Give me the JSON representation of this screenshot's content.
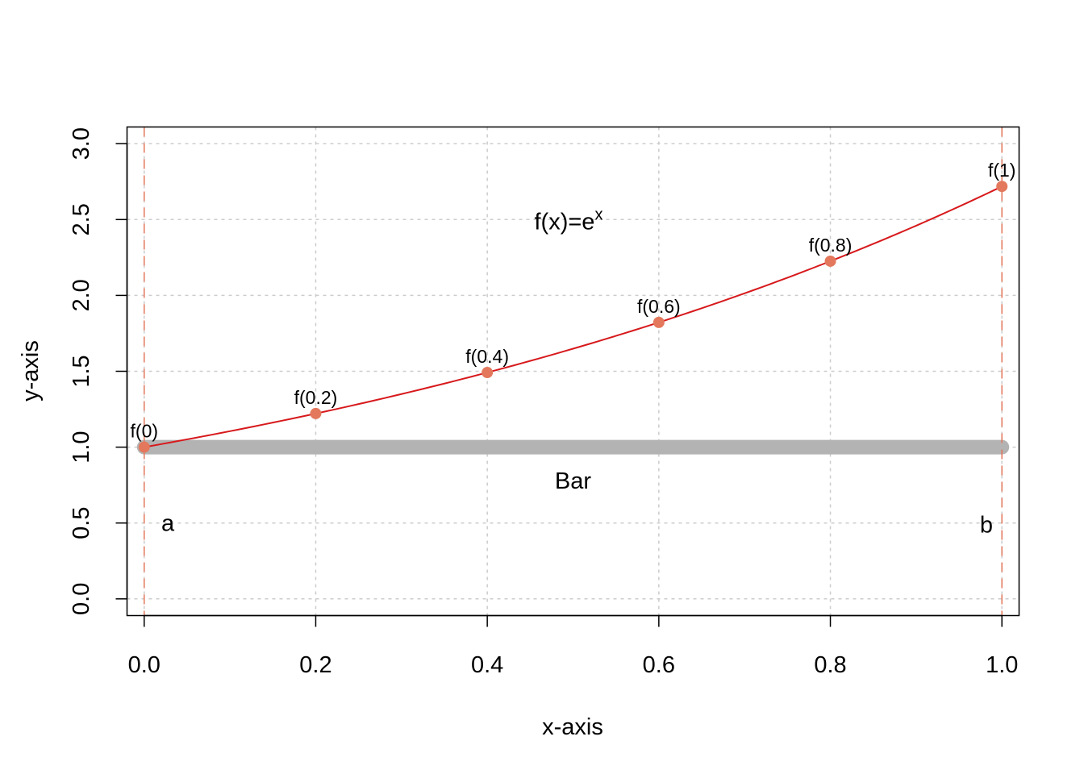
{
  "chart_data": {
    "type": "line",
    "title": "",
    "xlabel": "x-axis",
    "ylabel": "y-axis",
    "xlim": [
      -0.02,
      1.02
    ],
    "ylim": [
      -0.11,
      3.11
    ],
    "xticks": [
      0.0,
      0.2,
      0.4,
      0.6,
      0.8,
      1.0
    ],
    "xtick_labels": [
      "0.0",
      "0.2",
      "0.4",
      "0.6",
      "0.8",
      "1.0"
    ],
    "yticks": [
      0.0,
      0.5,
      1.0,
      1.5,
      2.0,
      2.5,
      3.0
    ],
    "ytick_labels": [
      "0.0",
      "0.5",
      "1.0",
      "1.5",
      "2.0",
      "2.5",
      "3.0"
    ],
    "grid": true,
    "function": {
      "name": "f(x)=e^x",
      "label_main": "f(x)=e",
      "label_sup": "x",
      "label_pos": [
        0.5,
        2.5
      ],
      "x_range": [
        0,
        1
      ],
      "color": "#d7191c"
    },
    "points": {
      "color": "#e3785c",
      "x": [
        0.0,
        0.2,
        0.4,
        0.6,
        0.8,
        1.0
      ],
      "y": [
        1.0,
        1.2214,
        1.4918,
        1.8221,
        2.2255,
        2.7183
      ],
      "labels": [
        "f(0)",
        "f(0.2)",
        "f(0.4)",
        "f(0.6)",
        "f(0.8)",
        "f(1)"
      ]
    },
    "bar": {
      "x": [
        0.0,
        1.0
      ],
      "y": 1.0,
      "color": "#b3b3b3",
      "label": "Bar",
      "label_pos": [
        0.5,
        0.78
      ]
    },
    "vlines": {
      "x": [
        0.0,
        1.0
      ],
      "color": "#e3785c",
      "labels": [
        "a",
        "b"
      ],
      "label_pos": [
        [
          0.02,
          0.5
        ],
        [
          0.98,
          0.49
        ]
      ]
    }
  }
}
